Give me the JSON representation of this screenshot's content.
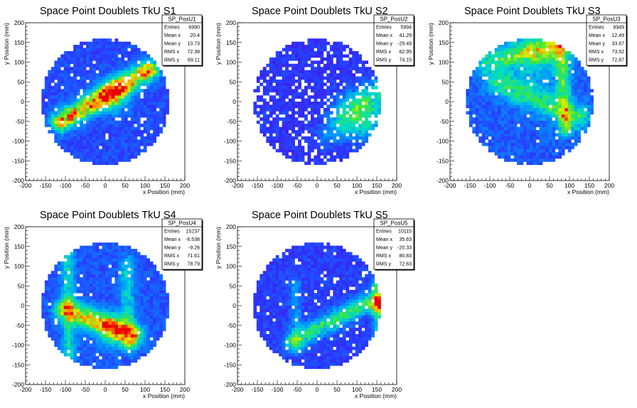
{
  "chart_data": [
    {
      "type": "heatmap",
      "title": "Space Point Doublets TkU S1",
      "xlabel": "x Position (mm)",
      "ylabel": "y Position (mm)",
      "xlim": [
        -200,
        200
      ],
      "ylim": [
        -200,
        200
      ],
      "xticks": [
        -200,
        -150,
        -100,
        -50,
        0,
        50,
        100,
        150,
        200
      ],
      "yticks": [
        -200,
        -150,
        -100,
        -50,
        0,
        50,
        100,
        150,
        200
      ],
      "stats": {
        "name": "SP_PosU1",
        "rows": [
          {
            "label": "Entries",
            "value": "6990"
          },
          {
            "label": "Mean x",
            "value": "20.4"
          },
          {
            "label": "Mean y",
            "value": "10.73"
          },
          {
            "label": "RMS x",
            "value": "72.38"
          },
          {
            "label": "RMS y",
            "value": "69.11"
          }
        ]
      },
      "distribution": {
        "radius": 160,
        "base": 0.12,
        "noise": 0.1,
        "holes": 0.05,
        "bands": [
          {
            "x1": -110,
            "y1": -50,
            "x2": 110,
            "y2": 80,
            "w": 18,
            "amp": 0.65
          }
        ],
        "blobs": [
          {
            "x": 20,
            "y": 15,
            "s": 28,
            "amp": 0.35
          }
        ]
      }
    },
    {
      "type": "heatmap",
      "title": "Space Point Doublets TkU S2",
      "xlabel": "x Position (mm)",
      "ylabel": "y Position (mm)",
      "xlim": [
        -200,
        200
      ],
      "ylim": [
        -200,
        200
      ],
      "xticks": [
        -200,
        -150,
        -100,
        -50,
        0,
        50,
        100,
        150,
        200
      ],
      "yticks": [
        -200,
        -150,
        -100,
        -50,
        0,
        50,
        100,
        150,
        200
      ],
      "stats": {
        "name": "SP_PosU2",
        "rows": [
          {
            "label": "Entries",
            "value": "5994"
          },
          {
            "label": "Mean x",
            "value": "41.29"
          },
          {
            "label": "Mean y",
            "value": "-29.49"
          },
          {
            "label": "RMS x",
            "value": "62.95"
          },
          {
            "label": "RMS y",
            "value": "74.15"
          }
        ]
      },
      "distribution": {
        "radius": 160,
        "base": 0.08,
        "noise": 0.1,
        "holes": 0.16,
        "bands": [
          {
            "x1": 60,
            "y1": -40,
            "x2": 160,
            "y2": 30,
            "w": 22,
            "amp": 0.25
          },
          {
            "x1": 20,
            "y1": -90,
            "x2": 120,
            "y2": -60,
            "w": 20,
            "amp": 0.12
          }
        ],
        "blobs": [
          {
            "x": 120,
            "y": -30,
            "s": 40,
            "amp": 0.28
          }
        ]
      }
    },
    {
      "type": "heatmap",
      "title": "Space Point Doublets TkU S3",
      "xlabel": "x Position (mm)",
      "ylabel": "y Position (mm)",
      "xlim": [
        -200,
        200
      ],
      "ylim": [
        -200,
        200
      ],
      "xticks": [
        -200,
        -150,
        -100,
        -50,
        0,
        50,
        100,
        150,
        200
      ],
      "yticks": [
        -200,
        -150,
        -100,
        -50,
        0,
        50,
        100,
        150,
        200
      ],
      "stats": {
        "name": "SP_PosU3",
        "rows": [
          {
            "label": "Entries",
            "value": "9949"
          },
          {
            "label": "Mean x",
            "value": "12.49"
          },
          {
            "label": "Mean y",
            "value": "33.67"
          },
          {
            "label": "RMS x",
            "value": "73.52"
          },
          {
            "label": "RMS y",
            "value": "72.87"
          }
        ]
      },
      "distribution": {
        "radius": 160,
        "base": 0.14,
        "noise": 0.12,
        "holes": 0.03,
        "bands": [
          {
            "x1": -80,
            "y1": 50,
            "x2": 120,
            "y2": -40,
            "w": 22,
            "amp": 0.32
          },
          {
            "x1": 80,
            "y1": 140,
            "x2": 90,
            "y2": -70,
            "w": 12,
            "amp": 0.35
          },
          {
            "x1": -110,
            "y1": 100,
            "x2": 120,
            "y2": 150,
            "w": 18,
            "amp": 0.3
          }
        ],
        "blobs": [
          {
            "x": 20,
            "y": 130,
            "s": 55,
            "amp": 0.25
          }
        ]
      }
    },
    {
      "type": "heatmap",
      "title": "Space Point Doublets TkU S4",
      "xlabel": "x Position (mm)",
      "ylabel": "y Position (mm)",
      "xlim": [
        -200,
        200
      ],
      "ylim": [
        -200,
        200
      ],
      "xticks": [
        -200,
        -150,
        -100,
        -50,
        0,
        50,
        100,
        150,
        200
      ],
      "yticks": [
        -200,
        -150,
        -100,
        -50,
        0,
        50,
        100,
        150,
        200
      ],
      "stats": {
        "name": "SP_PosU4",
        "rows": [
          {
            "label": "Entries",
            "value": "15237"
          },
          {
            "label": "Mean x",
            "value": "-6.538"
          },
          {
            "label": "Mean y",
            "value": "-9.26"
          },
          {
            "label": "RMS x",
            "value": "71.61"
          },
          {
            "label": "RMS y",
            "value": "78.79"
          }
        ]
      },
      "distribution": {
        "radius": 160,
        "base": 0.14,
        "noise": 0.1,
        "holes": 0.02,
        "bands": [
          {
            "x1": -100,
            "y1": -10,
            "x2": 70,
            "y2": -75,
            "w": 18,
            "amp": 0.55
          },
          {
            "x1": -95,
            "y1": 130,
            "x2": -90,
            "y2": -130,
            "w": 12,
            "amp": 0.25
          },
          {
            "x1": 55,
            "y1": 110,
            "x2": 60,
            "y2": -100,
            "w": 12,
            "amp": 0.22
          }
        ],
        "blobs": [
          {
            "x": 20,
            "y": -60,
            "s": 30,
            "amp": 0.3
          }
        ]
      }
    },
    {
      "type": "heatmap",
      "title": "Space Point Doublets TkU S5",
      "xlabel": "x Position (mm)",
      "ylabel": "y Position (mm)",
      "xlim": [
        -200,
        200
      ],
      "ylim": [
        -200,
        200
      ],
      "xticks": [
        -200,
        -150,
        -100,
        -50,
        0,
        50,
        100,
        150,
        200
      ],
      "yticks": [
        -200,
        -150,
        -100,
        -50,
        0,
        50,
        100,
        150,
        200
      ],
      "stats": {
        "name": "SP_PosU5",
        "rows": [
          {
            "label": "Entries",
            "value": "10115"
          },
          {
            "label": "Mean x",
            "value": "35.63"
          },
          {
            "label": "Mean y",
            "value": "-20.33"
          },
          {
            "label": "RMS x",
            "value": "80.83"
          },
          {
            "label": "RMS y",
            "value": "72.63"
          }
        ]
      },
      "distribution": {
        "radius": 160,
        "base": 0.1,
        "noise": 0.1,
        "holes": 0.07,
        "bands": [
          {
            "x1": -60,
            "y1": -90,
            "x2": 150,
            "y2": 20,
            "w": 16,
            "amp": 0.38
          },
          {
            "x1": 150,
            "y1": 60,
            "x2": 155,
            "y2": -80,
            "w": 10,
            "amp": 0.3
          },
          {
            "x1": -55,
            "y1": 60,
            "x2": -50,
            "y2": -110,
            "w": 10,
            "amp": 0.15
          }
        ],
        "blobs": [
          {
            "x": 160,
            "y": 0,
            "s": 14,
            "amp": 0.6
          }
        ]
      }
    }
  ]
}
